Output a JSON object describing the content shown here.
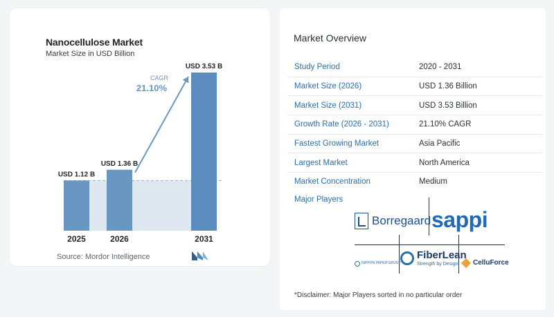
{
  "chart_data": {
    "type": "bar",
    "title": "Nanocellulose Market",
    "subtitle": "Market Size in USD Billion",
    "categories": [
      "2025",
      "2026",
      "2031"
    ],
    "values": [
      1.12,
      1.36,
      3.53
    ],
    "value_labels": [
      "USD 1.12 B",
      "USD 1.36 B",
      "USD 3.53 B"
    ],
    "annotation": {
      "label": "CAGR",
      "value": "21.10%"
    },
    "ylim": [
      0,
      3.7
    ],
    "baseline_reference": 1.12,
    "grid": false,
    "colors": {
      "bar": "#6a97c2",
      "bar_tall": "#5b8cbd",
      "shade": "#dfe8f1",
      "arrow": "#6a97c2",
      "dashed": "#8fb1d1"
    }
  },
  "source": "Source:  Mordor Intelligence",
  "overview": {
    "title": "Market Overview",
    "rows": [
      {
        "label": "Study Period",
        "value": "2020 - 2031"
      },
      {
        "label": "Market Size (2026)",
        "value": "USD 1.36 Billion"
      },
      {
        "label": "Market Size (2031)",
        "value": "USD 3.53 Billion"
      },
      {
        "label": "Growth Rate (2026 - 2031)",
        "value": "21.10% CAGR"
      },
      {
        "label": "Fastest Growing Market",
        "value": "Asia Pacific"
      },
      {
        "label": "Largest Market",
        "value": "North America"
      },
      {
        "label": "Market Concentration",
        "value": "Medium"
      }
    ],
    "major_players_title": "Major Players",
    "players": [
      "Borregaard",
      "sappi",
      "NIPPON PAPER GROUP",
      "FiberLean",
      "Strength by Design",
      "CelluForce"
    ],
    "disclaimer": "*Disclaimer: Major Players sorted in no particular order"
  }
}
